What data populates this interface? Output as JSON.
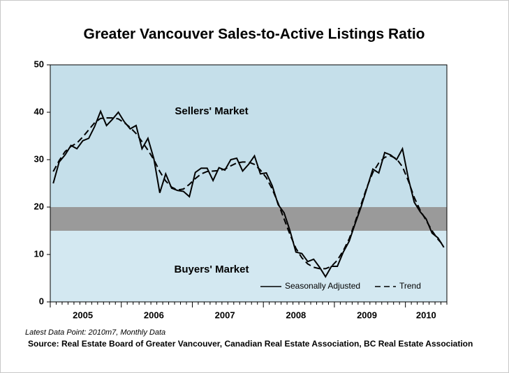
{
  "chart_data": {
    "type": "line",
    "title": "Greater Vancouver Sales-to-Active Listings Ratio",
    "annotations": [
      "Sellers' Market",
      "Buyers' Market"
    ],
    "note": "Latest Data Point: 2010m7, Monthly Data",
    "source": "Source: Real Estate Board of Greater Vancouver, Canadian Real Estate Association, BC Real Estate Association",
    "band": [
      15,
      20
    ],
    "ylim": [
      0,
      50
    ],
    "yticks": [
      0,
      10,
      20,
      30,
      40,
      50
    ],
    "categories": [
      null,
      null,
      null,
      null,
      null,
      "2005",
      null,
      null,
      null,
      null,
      null,
      null,
      null,
      null,
      null,
      null,
      null,
      "2006",
      null,
      null,
      null,
      null,
      null,
      null,
      null,
      null,
      null,
      null,
      null,
      "2007",
      null,
      null,
      null,
      null,
      null,
      null,
      null,
      null,
      null,
      null,
      null,
      "2008",
      null,
      null,
      null,
      null,
      null,
      null,
      null,
      null,
      null,
      null,
      null,
      "2009",
      null,
      null,
      null,
      null,
      null,
      null,
      null,
      null,
      null,
      "2010",
      null,
      null,
      null
    ],
    "series": [
      {
        "name": "Seasonally Adjusted",
        "color": "#000000",
        "dash": false,
        "values": [
          25,
          29.5,
          31,
          33,
          32.3,
          34,
          34.5,
          37,
          40.2,
          37.2,
          38.5,
          40,
          38,
          36.5,
          37.2,
          32.3,
          34.5,
          30.2,
          23,
          27,
          24,
          23.5,
          23.3,
          22.2,
          27.3,
          28.2,
          28.2,
          25.6,
          28.3,
          27.8,
          30,
          30.3,
          27.6,
          29,
          30.8,
          27,
          27.2,
          24.5,
          20.5,
          18.8,
          15,
          10.5,
          10.2,
          8.5,
          9,
          7.3,
          5.3,
          7.5,
          7.5,
          10.5,
          12.8,
          16.5,
          20,
          24,
          28,
          27.2,
          31.5,
          31,
          30,
          32.3,
          26,
          21,
          19,
          17.5,
          14.5,
          13.5,
          11.5
        ]
      },
      {
        "name": "Trend",
        "color": "#000000",
        "dash": true,
        "values": [
          27.5,
          29.8,
          31.7,
          32.8,
          33.5,
          34.8,
          36.3,
          37.8,
          38.7,
          38.8,
          38.8,
          38.6,
          37.8,
          36.8,
          35.5,
          33.8,
          32.0,
          30.0,
          27.5,
          25.5,
          24.2,
          23.6,
          23.8,
          24.8,
          26.0,
          27.0,
          27.5,
          27.6,
          27.7,
          28.0,
          28.7,
          29.3,
          29.5,
          29.5,
          29.0,
          27.8,
          26.2,
          23.8,
          20.8,
          17.5,
          14.2,
          11.3,
          9.3,
          8.0,
          7.3,
          7.0,
          7.0,
          7.5,
          8.8,
          10.8,
          13.3,
          16.8,
          20.5,
          24.2,
          27.3,
          29.3,
          30.5,
          30.8,
          30.2,
          28.5,
          25.5,
          22.0,
          19.3,
          17.2,
          15.0,
          13.2,
          11.8
        ]
      }
    ]
  }
}
